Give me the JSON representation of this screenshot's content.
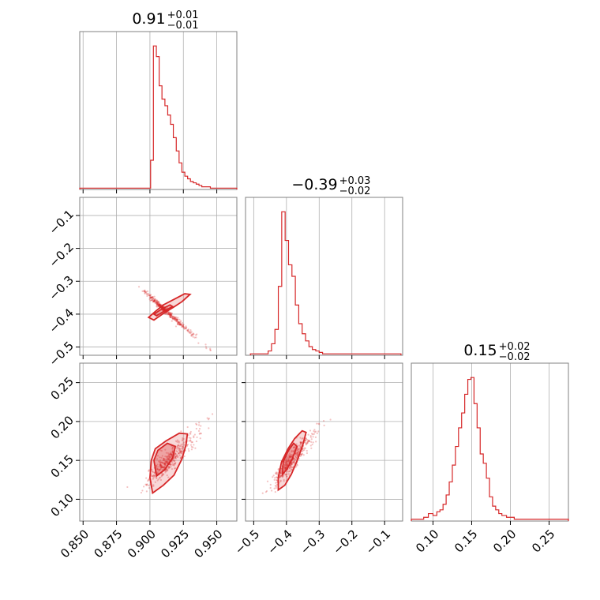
{
  "chart_data": {
    "type": "corner",
    "color": "#d62728",
    "parameters": [
      {
        "id": "p0",
        "title": {
          "median": "0.91",
          "plus": "+0.01",
          "minus": "−0.01"
        },
        "range": [
          0.8475,
          0.965
        ],
        "ticks": [
          {
            "value": 0.85,
            "label": "0.850"
          },
          {
            "value": 0.875,
            "label": "0.875"
          },
          {
            "value": 0.9,
            "label": "0.900"
          },
          {
            "value": 0.925,
            "label": "0.925"
          },
          {
            "value": 0.95,
            "label": "0.950"
          }
        ],
        "histogram": {
          "edges": [
            0.8475,
            0.9005,
            0.9026,
            0.9048,
            0.9069,
            0.909,
            0.9112,
            0.9133,
            0.9154,
            0.9175,
            0.9197,
            0.9218,
            0.9239,
            0.9261,
            0.9282,
            0.9303,
            0.9324,
            0.9346,
            0.9367,
            0.9388,
            0.941,
            0.9431,
            0.9452,
            0.9474,
            0.9495,
            0.965
          ],
          "counts": [
            1,
            22,
            108,
            100,
            78,
            68,
            63,
            56,
            49,
            39,
            29,
            20,
            13,
            10,
            8,
            6,
            5,
            4,
            3,
            2,
            2,
            2,
            1,
            1,
            1
          ]
        }
      },
      {
        "id": "p1",
        "title": {
          "median": "−0.39",
          "plus": "+0.03",
          "minus": "−0.02"
        },
        "range": [
          -0.525,
          -0.045
        ],
        "ticks": [
          {
            "value": -0.5,
            "label": "−0.5"
          },
          {
            "value": -0.4,
            "label": "−0.4"
          },
          {
            "value": -0.3,
            "label": "−0.3"
          },
          {
            "value": -0.2,
            "label": "−0.2"
          },
          {
            "value": -0.1,
            "label": "−0.1"
          }
        ],
        "histogram": {
          "edges": [
            -0.51,
            -0.456,
            -0.4456,
            -0.4352,
            -0.4248,
            -0.4144,
            -0.404,
            -0.3936,
            -0.3832,
            -0.3728,
            -0.3624,
            -0.352,
            -0.3416,
            -0.3312,
            -0.3208,
            -0.3104,
            -0.3,
            -0.2896,
            -0.2792,
            -0.2688,
            -0.2584,
            -0.248,
            -0.05
          ],
          "counts": [
            1,
            3,
            8,
            18,
            48,
            100,
            80,
            63,
            55,
            35,
            22,
            15,
            10,
            6,
            4,
            3,
            2,
            1,
            1,
            1,
            1,
            1
          ]
        }
      },
      {
        "id": "p2",
        "title": {
          "median": "0.15",
          "plus": "+0.02",
          "minus": "−0.02"
        },
        "range": [
          0.072,
          0.275
        ],
        "ticks": [
          {
            "value": 0.1,
            "label": "0.10"
          },
          {
            "value": 0.15,
            "label": "0.15"
          },
          {
            "value": 0.2,
            "label": "0.20"
          },
          {
            "value": 0.25,
            "label": "0.25"
          }
        ],
        "histogram": {
          "edges": [
            0.072,
            0.088,
            0.094,
            0.1,
            0.105,
            0.109,
            0.113,
            0.117,
            0.121,
            0.125,
            0.129,
            0.133,
            0.137,
            0.141,
            0.145,
            0.149,
            0.153,
            0.157,
            0.161,
            0.165,
            0.169,
            0.173,
            0.177,
            0.181,
            0.185,
            0.189,
            0.195,
            0.205,
            0.22,
            0.275
          ],
          "counts": [
            1,
            2,
            4,
            3,
            5,
            6,
            9,
            14,
            21,
            30,
            40,
            50,
            58,
            68,
            76,
            77,
            63,
            50,
            36,
            31,
            23,
            13,
            8,
            6,
            4,
            3,
            2,
            1,
            1
          ]
        }
      }
    ],
    "pairs": [
      {
        "x": "p0",
        "y": "p1",
        "scatter_center": [
          0.912,
          -0.39
        ],
        "scatter_major": [
          0.0075,
          -0.027
        ],
        "scatter_minor_y": 0.008,
        "outer_contour": [
          [
            0.903,
            -0.418
          ],
          [
            0.91,
            -0.398
          ],
          [
            0.918,
            -0.378
          ],
          [
            0.924,
            -0.362
          ],
          [
            0.93,
            -0.34
          ],
          [
            0.926,
            -0.338
          ],
          [
            0.918,
            -0.355
          ],
          [
            0.91,
            -0.372
          ],
          [
            0.904,
            -0.392
          ],
          [
            0.899,
            -0.41
          ]
        ],
        "inner_contour": [
          [
            0.905,
            -0.405
          ],
          [
            0.911,
            -0.39
          ],
          [
            0.917,
            -0.377
          ],
          [
            0.915,
            -0.372
          ],
          [
            0.909,
            -0.384
          ],
          [
            0.903,
            -0.4
          ]
        ]
      },
      {
        "x": "p0",
        "y": "p2",
        "scatter_center": [
          0.914,
          0.15
        ],
        "scatter_major": [
          0.008,
          0.013
        ],
        "scatter_minor_y": 0.012,
        "outer_contour": [
          [
            0.902,
            0.108
          ],
          [
            0.91,
            0.118
          ],
          [
            0.918,
            0.131
          ],
          [
            0.924,
            0.152
          ],
          [
            0.927,
            0.17
          ],
          [
            0.928,
            0.184
          ],
          [
            0.922,
            0.185
          ],
          [
            0.912,
            0.175
          ],
          [
            0.904,
            0.165
          ],
          [
            0.901,
            0.15
          ],
          [
            0.9,
            0.128
          ]
        ],
        "inner_contour": [
          [
            0.905,
            0.13
          ],
          [
            0.911,
            0.138
          ],
          [
            0.917,
            0.153
          ],
          [
            0.919,
            0.168
          ],
          [
            0.913,
            0.172
          ],
          [
            0.906,
            0.163
          ],
          [
            0.903,
            0.15
          ]
        ]
      },
      {
        "x": "p1",
        "y": "p2",
        "scatter_center": [
          -0.385,
          0.15
        ],
        "scatter_major": [
          0.028,
          0.014
        ],
        "scatter_minor_y": 0.011,
        "outer_contour": [
          [
            -0.425,
            0.112
          ],
          [
            -0.405,
            0.118
          ],
          [
            -0.385,
            0.132
          ],
          [
            -0.365,
            0.152
          ],
          [
            -0.35,
            0.17
          ],
          [
            -0.34,
            0.186
          ],
          [
            -0.352,
            0.188
          ],
          [
            -0.375,
            0.178
          ],
          [
            -0.395,
            0.165
          ],
          [
            -0.415,
            0.148
          ],
          [
            -0.425,
            0.128
          ]
        ],
        "inner_contour": [
          [
            -0.412,
            0.132
          ],
          [
            -0.398,
            0.139
          ],
          [
            -0.382,
            0.152
          ],
          [
            -0.368,
            0.168
          ],
          [
            -0.378,
            0.172
          ],
          [
            -0.395,
            0.162
          ],
          [
            -0.41,
            0.148
          ]
        ]
      }
    ]
  }
}
